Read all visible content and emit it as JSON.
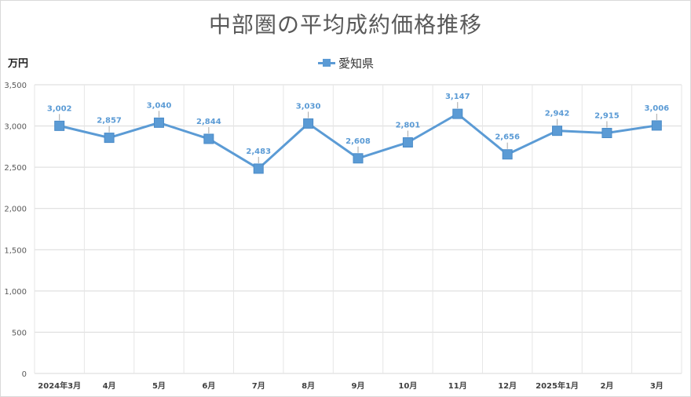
{
  "chart_data": {
    "type": "line",
    "title": "中部圏の平均成約価格推移",
    "ylabel": "万円",
    "xlabel": "",
    "ylim": [
      0,
      3500
    ],
    "yticks": [
      0,
      500,
      1000,
      1500,
      2000,
      2500,
      3000,
      3500
    ],
    "ytick_labels": [
      "0",
      "500",
      "1,000",
      "1,500",
      "2,000",
      "2,500",
      "3,000",
      "3,500"
    ],
    "categories": [
      "2024年3月",
      "4月",
      "5月",
      "6月",
      "7月",
      "8月",
      "9月",
      "10月",
      "11月",
      "12月",
      "2025年1月",
      "2月",
      "3月"
    ],
    "series": [
      {
        "name": "愛知県",
        "color": "#5b9bd5",
        "values": [
          3002,
          2857,
          3040,
          2844,
          2483,
          3030,
          2608,
          2801,
          3147,
          2656,
          2942,
          2915,
          3006
        ],
        "data_labels": [
          "3,002",
          "2,857",
          "3,040",
          "2,844",
          "2,483",
          "3,030",
          "2,608",
          "2,801",
          "3,147",
          "2,656",
          "2,942",
          "2,915",
          "3,006"
        ]
      }
    ],
    "grid": true,
    "legend": "top-center",
    "marker": "square"
  }
}
